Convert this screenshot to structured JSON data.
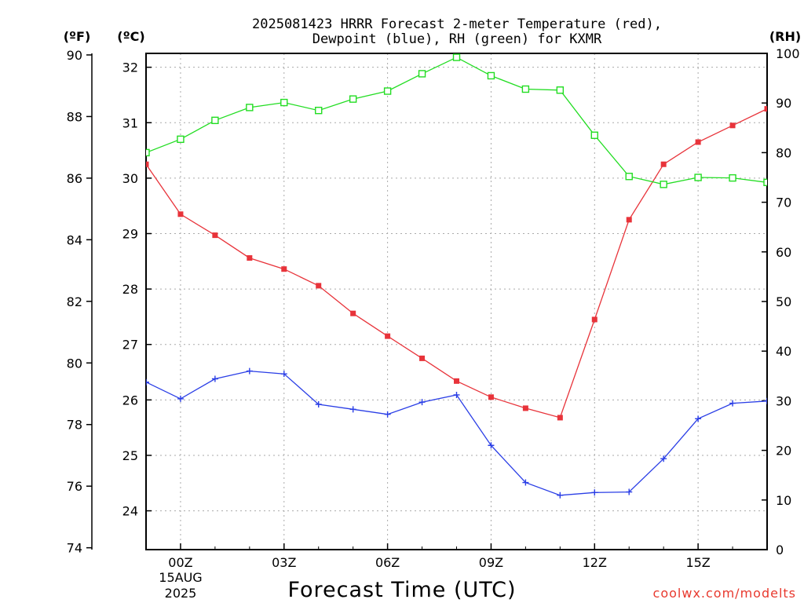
{
  "chart_data": {
    "type": "line",
    "title": "2025081423 HRRR Forecast 2-meter Temperature (red),",
    "subtitle": "Dewpoint (blue), RH (green) for KXMR",
    "xlabel": "Forecast Time (UTC)",
    "credit": "coolwx.com/modelts",
    "axis_units": {
      "fahrenheit": "(ºF)",
      "celsius": "(ºC)",
      "rh": "(RH)"
    },
    "x_tick_labels": [
      "00Z",
      "03Z",
      "06Z",
      "09Z",
      "12Z",
      "15Z"
    ],
    "x_date_line1": "15AUG",
    "x_date_line2": "2025",
    "fahrenheit_ticks": [
      "90",
      "88",
      "86",
      "84",
      "82",
      "80",
      "78",
      "76",
      "74"
    ],
    "celsius_ticks": [
      "32",
      "31",
      "30",
      "29",
      "28",
      "27",
      "26",
      "25",
      "24"
    ],
    "rh_ticks": [
      "100",
      "90",
      "80",
      "70",
      "60",
      "50",
      "40",
      "30",
      "20",
      "10",
      "0"
    ],
    "x_hours": [
      -1,
      0,
      1,
      2,
      3,
      4,
      5,
      6,
      7,
      8,
      9,
      10,
      11,
      12,
      13,
      14,
      15,
      16,
      17
    ],
    "xlim_hours": [
      -1,
      17
    ],
    "ylim_celsius": [
      23.3,
      32.25
    ],
    "ylim_rh": [
      0,
      100
    ],
    "grid": true,
    "series": [
      {
        "name": "Temperature",
        "color": "#e8333a",
        "marker": "filled-square",
        "axis": "celsius",
        "values": [
          30.25,
          29.35,
          28.97,
          28.56,
          28.36,
          28.06,
          27.56,
          27.15,
          26.75,
          26.34,
          26.05,
          25.85,
          25.68,
          27.45,
          29.25,
          30.25,
          30.65,
          30.95,
          31.25
        ]
      },
      {
        "name": "Dewpoint",
        "color": "#2a3ee6",
        "marker": "plus",
        "axis": "celsius",
        "values": [
          26.32,
          26.02,
          26.38,
          26.52,
          26.47,
          25.92,
          25.83,
          25.74,
          25.96,
          26.09,
          25.18,
          24.51,
          24.28,
          24.33,
          24.34,
          24.94,
          25.66,
          25.94,
          25.98
        ]
      },
      {
        "name": "RH",
        "color": "#22dd22",
        "marker": "open-square",
        "axis": "rh",
        "values": [
          80.0,
          82.7,
          86.5,
          89.1,
          90.1,
          88.5,
          90.8,
          92.4,
          95.9,
          99.2,
          95.5,
          92.8,
          92.6,
          83.5,
          75.2,
          73.6,
          75.0,
          74.9,
          74.0
        ]
      }
    ]
  }
}
